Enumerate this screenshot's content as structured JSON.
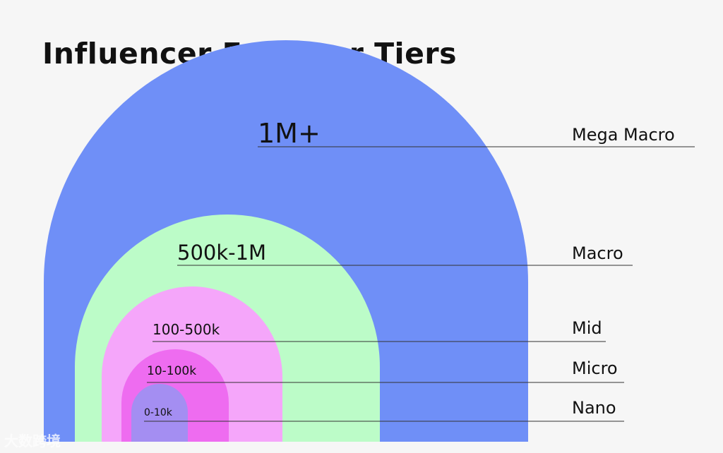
{
  "title": "Influencer Follower Tiers",
  "tiers": [
    {
      "range": "1M+",
      "name": "Mega Macro",
      "color": "#6f8ff7"
    },
    {
      "range": "500k-1M",
      "name": "Macro",
      "color": "#bcfcc8"
    },
    {
      "range": "100-500k",
      "name": "Mid",
      "color": "#f5a6fa"
    },
    {
      "range": "10-100k",
      "name": "Micro",
      "color": "#ee6cf0"
    },
    {
      "range": "0-10k",
      "name": "Nano",
      "color": "#a48ef2"
    }
  ],
  "watermark": "大数跨境"
}
